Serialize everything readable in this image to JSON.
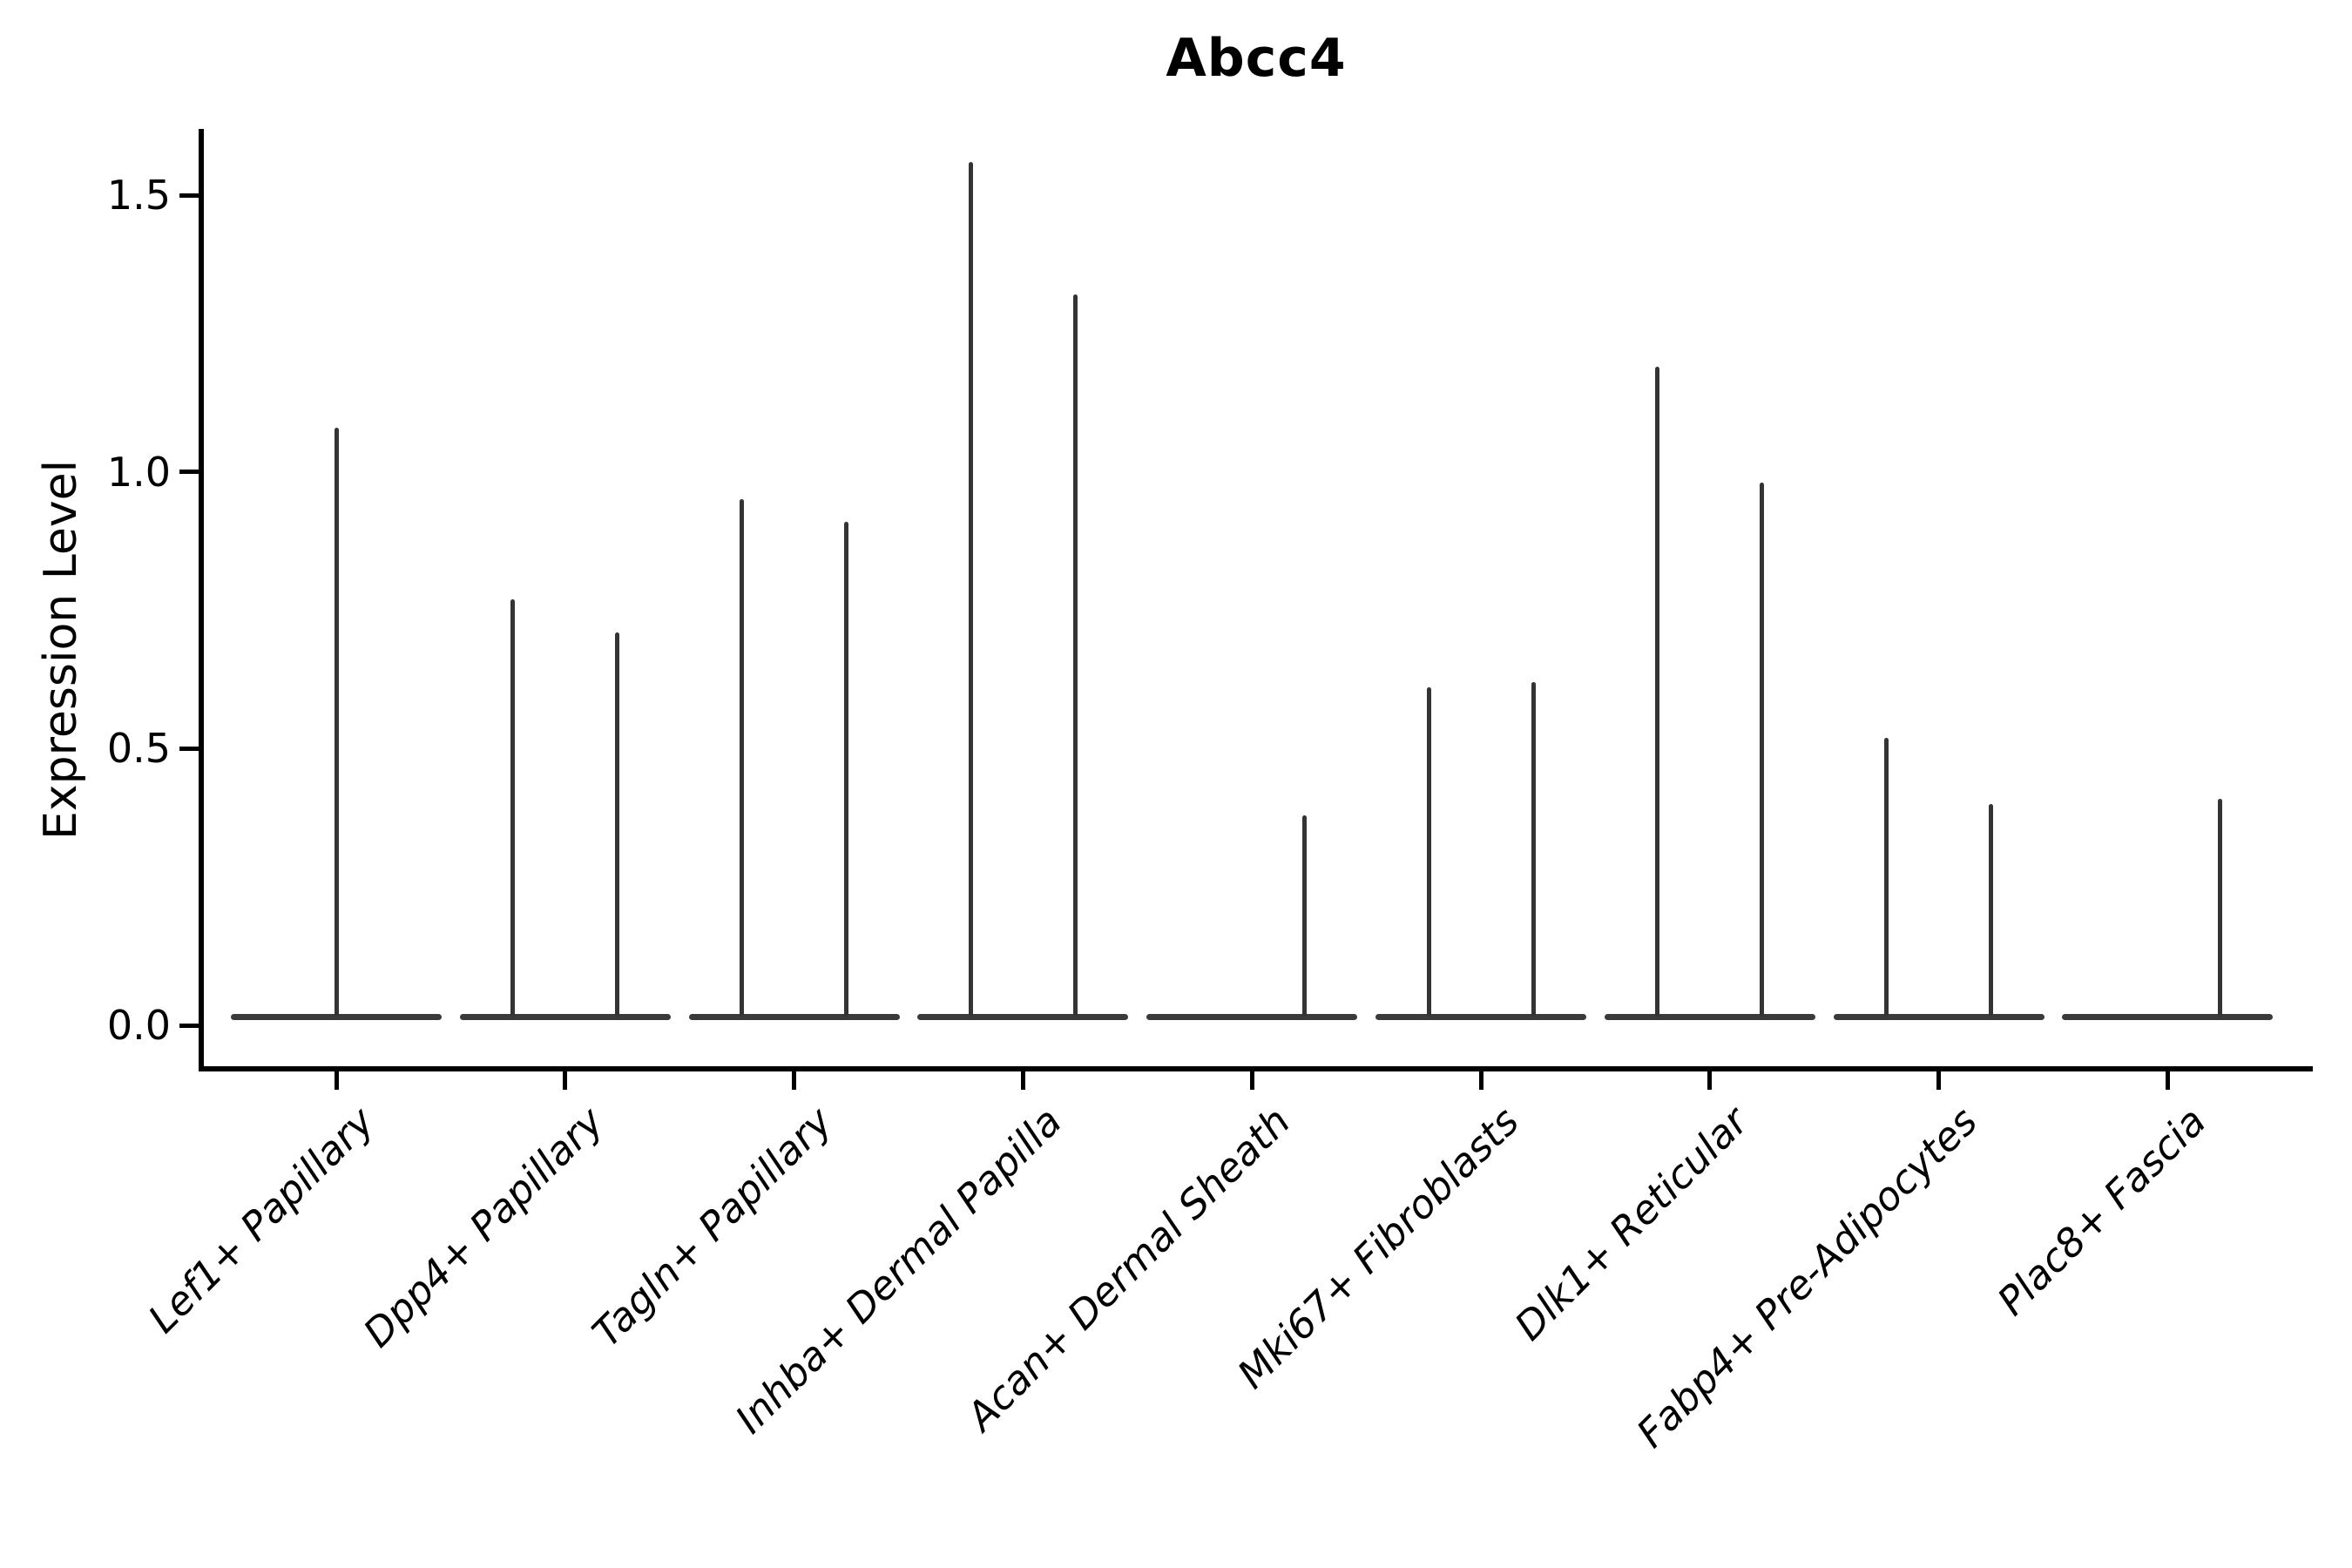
{
  "figure": {
    "title": "Abcc4",
    "ylabel": "Expression Level"
  },
  "chart_data": {
    "type": "violin",
    "title": "Abcc4",
    "xlabel": "",
    "ylabel": "Expression Level",
    "ylim": [
      -0.07,
      1.63
    ],
    "yticks": [
      "0.0",
      "0.5",
      "1.0",
      "1.5"
    ],
    "ytick_values": [
      0.0,
      0.5,
      1.0,
      1.5
    ],
    "grid": false,
    "legend": "none",
    "description": "Violin plot of Abcc4 expression; violins collapse to thin vertical spikes on a flat zero baseline. Each category holds up to two side-by-side violins; 'peak' is the maximum expression level reached by each spike.",
    "categories": [
      {
        "label": "Lef1+ Papillary",
        "violins": [
          {
            "slot": "center",
            "peak": 1.08
          }
        ]
      },
      {
        "label": "Dpp4+ Papillary",
        "violins": [
          {
            "slot": "left",
            "peak": 0.77
          },
          {
            "slot": "right",
            "peak": 0.71
          }
        ]
      },
      {
        "label": "Tagln+ Papillary",
        "violins": [
          {
            "slot": "left",
            "peak": 0.95
          },
          {
            "slot": "right",
            "peak": 0.91
          }
        ]
      },
      {
        "label": "Inhba+ Dermal Papilla",
        "violins": [
          {
            "slot": "left",
            "peak": 1.56
          },
          {
            "slot": "right",
            "peak": 1.32
          }
        ]
      },
      {
        "label": "Acan+ Dermal Sheath",
        "violins": [
          {
            "slot": "right",
            "peak": 0.38
          }
        ]
      },
      {
        "label": "Mki67+ Fibroblasts",
        "violins": [
          {
            "slot": "left",
            "peak": 0.61
          },
          {
            "slot": "right",
            "peak": 0.62
          }
        ]
      },
      {
        "label": "Dlk1+ Reticular",
        "violins": [
          {
            "slot": "left",
            "peak": 1.19
          },
          {
            "slot": "right",
            "peak": 0.98
          }
        ]
      },
      {
        "label": "Fabp4+ Pre-Adipocytes",
        "violins": [
          {
            "slot": "left",
            "peak": 0.52
          },
          {
            "slot": "right",
            "peak": 0.4
          }
        ]
      },
      {
        "label": "Plac8+ Fascia",
        "violins": [
          {
            "slot": "right",
            "peak": 0.41
          }
        ]
      }
    ],
    "colors": {
      "violin_line": "#3a3a3a",
      "axis": "#000000",
      "text": "#000000",
      "background": "#ffffff"
    }
  }
}
